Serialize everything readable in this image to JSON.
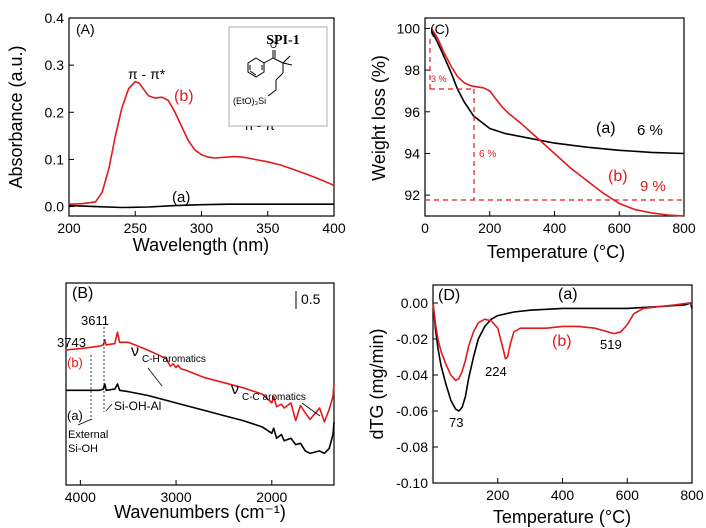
{
  "colors": {
    "a": "#000000",
    "b": "#e31a1c"
  },
  "chart_data": [
    {
      "id": "A",
      "type": "line",
      "panel_label": "(A)",
      "xlabel": "Wavelength (nm)",
      "ylabel": "Absorbance (a.u.)",
      "xlim": [
        200,
        400
      ],
      "ylim": [
        -0.02,
        0.4
      ],
      "xticks": [
        200,
        250,
        300,
        350,
        400
      ],
      "yticks": [
        0.0,
        0.1,
        0.2,
        0.3,
        0.4
      ],
      "ytick_labels": [
        "0.0",
        "0.1",
        "0.2",
        "0.3",
        "0.4"
      ],
      "series": [
        {
          "name": "(b)",
          "color": "#e31a1c",
          "x": [
            200,
            210,
            220,
            225,
            230,
            235,
            240,
            245,
            250,
            253,
            256,
            260,
            265,
            270,
            275,
            280,
            285,
            290,
            295,
            300,
            305,
            310,
            315,
            320,
            325,
            330,
            335,
            340,
            350,
            360,
            370,
            380,
            390,
            400
          ],
          "y": [
            0.005,
            0.006,
            0.01,
            0.03,
            0.08,
            0.15,
            0.21,
            0.25,
            0.265,
            0.262,
            0.25,
            0.235,
            0.23,
            0.232,
            0.225,
            0.2,
            0.17,
            0.14,
            0.12,
            0.11,
            0.105,
            0.103,
            0.104,
            0.105,
            0.106,
            0.105,
            0.103,
            0.1,
            0.095,
            0.088,
            0.078,
            0.068,
            0.057,
            0.045
          ]
        },
        {
          "name": "(a)",
          "color": "#000000",
          "x": [
            200,
            220,
            240,
            260,
            280,
            300,
            320,
            340,
            360,
            380,
            400
          ],
          "y": [
            0.002,
            0.0,
            -0.002,
            -0.001,
            0.002,
            0.004,
            0.005,
            0.005,
            0.005,
            0.005,
            0.005
          ]
        }
      ],
      "annotations": [
        "SPI-1",
        "π - π*",
        "n - π*",
        "(b)",
        "(a)"
      ],
      "inset_labels": [
        "O",
        "(EtO)₃Si"
      ]
    },
    {
      "id": "C",
      "type": "line",
      "panel_label": "(C)",
      "xlabel": "Temperature (°C)",
      "ylabel": "Weight loss (%)",
      "xlim": [
        0,
        800
      ],
      "ylim": [
        91,
        100.5
      ],
      "xticks": [
        0,
        200,
        400,
        600,
        800
      ],
      "yticks": [
        92,
        94,
        96,
        98,
        100
      ],
      "series": [
        {
          "name": "(a)",
          "color": "#000000",
          "x": [
            20,
            40,
            60,
            80,
            100,
            120,
            150,
            200,
            250,
            300,
            400,
            500,
            600,
            700,
            800
          ],
          "y": [
            99.9,
            99.3,
            98.6,
            97.9,
            97.1,
            96.5,
            95.8,
            95.2,
            94.95,
            94.8,
            94.5,
            94.3,
            94.15,
            94.05,
            94.0
          ]
        },
        {
          "name": "(b)",
          "color": "#e31a1c",
          "x": [
            20,
            40,
            60,
            80,
            100,
            120,
            140,
            160,
            180,
            200,
            220,
            240,
            260,
            300,
            350,
            400,
            450,
            500,
            550,
            600,
            650,
            700,
            750,
            800
          ],
          "y": [
            100,
            99.5,
            98.8,
            98.2,
            97.7,
            97.4,
            97.25,
            97.2,
            97.15,
            97.0,
            96.6,
            96.2,
            95.9,
            95.4,
            94.7,
            94.0,
            93.3,
            92.7,
            92.1,
            91.6,
            91.3,
            91.15,
            91.05,
            91.0
          ]
        }
      ],
      "annotations": [
        "(a)",
        "6 %",
        "(b)",
        "9 %",
        "3 %",
        "6 %"
      ]
    },
    {
      "id": "B",
      "type": "line",
      "panel_label": "(B)",
      "xlabel": "Wavenumbers (cm⁻¹)",
      "ylabel": "",
      "xlim": [
        4150,
        1350
      ],
      "xticks": [
        4000,
        3000,
        2000
      ],
      "scale_bar": "0.5",
      "series": [
        {
          "name": "(b)",
          "color": "#e31a1c",
          "x": [
            4150,
            4000,
            3900,
            3800,
            3760,
            3745,
            3730,
            3640,
            3612,
            3590,
            3500,
            3300,
            3100,
            3060,
            3030,
            3000,
            2980,
            2950,
            2900,
            2700,
            2500,
            2300,
            2100,
            2000,
            1980,
            1950,
            1900,
            1870,
            1800,
            1750,
            1700,
            1650,
            1600,
            1500,
            1450,
            1400,
            1360,
            1350
          ],
          "y": [
            0.52,
            0.53,
            0.54,
            0.55,
            0.56,
            0.6,
            0.56,
            0.57,
            0.66,
            0.58,
            0.58,
            0.52,
            0.45,
            0.39,
            0.41,
            0.38,
            0.4,
            0.37,
            0.36,
            0.3,
            0.26,
            0.22,
            0.17,
            0.1,
            0.15,
            0.07,
            0.09,
            0.06,
            0.1,
            -0.04,
            0.08,
            0.02,
            -0.03,
            0.06,
            -0.05,
            0.05,
            0.15,
            0.25
          ]
        },
        {
          "name": "(a)",
          "color": "#000000",
          "x": [
            4150,
            4000,
            3900,
            3800,
            3760,
            3745,
            3730,
            3640,
            3612,
            3590,
            3500,
            3300,
            3100,
            2900,
            2700,
            2500,
            2300,
            2100,
            2000,
            1980,
            1950,
            1900,
            1870,
            1800,
            1750,
            1700,
            1650,
            1600,
            1500,
            1450,
            1400,
            1360,
            1350
          ],
          "y": [
            0.2,
            0.2,
            0.2,
            0.2,
            0.21,
            0.25,
            0.2,
            0.21,
            0.25,
            0.2,
            0.19,
            0.16,
            0.12,
            0.08,
            0.04,
            0.0,
            -0.04,
            -0.09,
            -0.14,
            -0.1,
            -0.18,
            -0.15,
            -0.2,
            -0.18,
            -0.23,
            -0.22,
            -0.28,
            -0.3,
            -0.28,
            -0.3,
            -0.26,
            -0.15,
            -0.05
          ]
        }
      ],
      "annotations": [
        "3743",
        "3611",
        "(b)",
        "(a)",
        "ν",
        "C-H aromatics",
        "ν",
        "C-C aromatics",
        "Si-OH-Al",
        "External",
        "Si-OH"
      ]
    },
    {
      "id": "D",
      "type": "line",
      "panel_label": "(D)",
      "xlabel": "Temperature (°C)",
      "ylabel": "dTG (mg/min)",
      "xlim": [
        0,
        800
      ],
      "ylim": [
        -0.1,
        0.01
      ],
      "xticks": [
        200,
        400,
        600,
        800
      ],
      "yticks": [
        0.0,
        -0.02,
        -0.04,
        -0.06,
        -0.08,
        -0.1
      ],
      "ytick_labels": [
        "0.00",
        "-0.02",
        "-0.04",
        "-0.06",
        "-0.08",
        "-0.10"
      ],
      "series": [
        {
          "name": "(a)",
          "color": "#000000",
          "x": [
            0,
            8,
            15,
            25,
            40,
            55,
            70,
            80,
            90,
            100,
            110,
            125,
            140,
            160,
            180,
            200,
            250,
            300,
            400,
            500,
            600,
            700,
            780,
            795,
            800
          ],
          "y": [
            0.0,
            -0.015,
            -0.025,
            -0.035,
            -0.045,
            -0.054,
            -0.059,
            -0.06,
            -0.058,
            -0.052,
            -0.042,
            -0.03,
            -0.02,
            -0.013,
            -0.009,
            -0.007,
            -0.005,
            -0.004,
            -0.003,
            -0.003,
            -0.003,
            -0.002,
            -0.001,
            0.0,
            -0.003
          ]
        },
        {
          "name": "(b)",
          "color": "#e31a1c",
          "x": [
            0,
            8,
            15,
            25,
            40,
            55,
            70,
            80,
            90,
            100,
            110,
            125,
            140,
            160,
            180,
            200,
            210,
            220,
            224,
            230,
            240,
            250,
            270,
            300,
            350,
            400,
            450,
            500,
            520,
            540,
            560,
            580,
            600,
            620,
            650,
            700,
            750,
            790,
            800
          ],
          "y": [
            0.0,
            -0.012,
            -0.02,
            -0.027,
            -0.034,
            -0.04,
            -0.043,
            -0.042,
            -0.038,
            -0.032,
            -0.024,
            -0.016,
            -0.011,
            -0.009,
            -0.01,
            -0.014,
            -0.021,
            -0.028,
            -0.031,
            -0.03,
            -0.022,
            -0.016,
            -0.014,
            -0.014,
            -0.014,
            -0.013,
            -0.013,
            -0.014,
            -0.015,
            -0.016,
            -0.017,
            -0.016,
            -0.012,
            -0.006,
            -0.003,
            -0.002,
            -0.001,
            0.0,
            -0.001
          ]
        }
      ],
      "annotations": [
        "(a)",
        "(b)",
        "73",
        "224",
        "519"
      ]
    }
  ]
}
